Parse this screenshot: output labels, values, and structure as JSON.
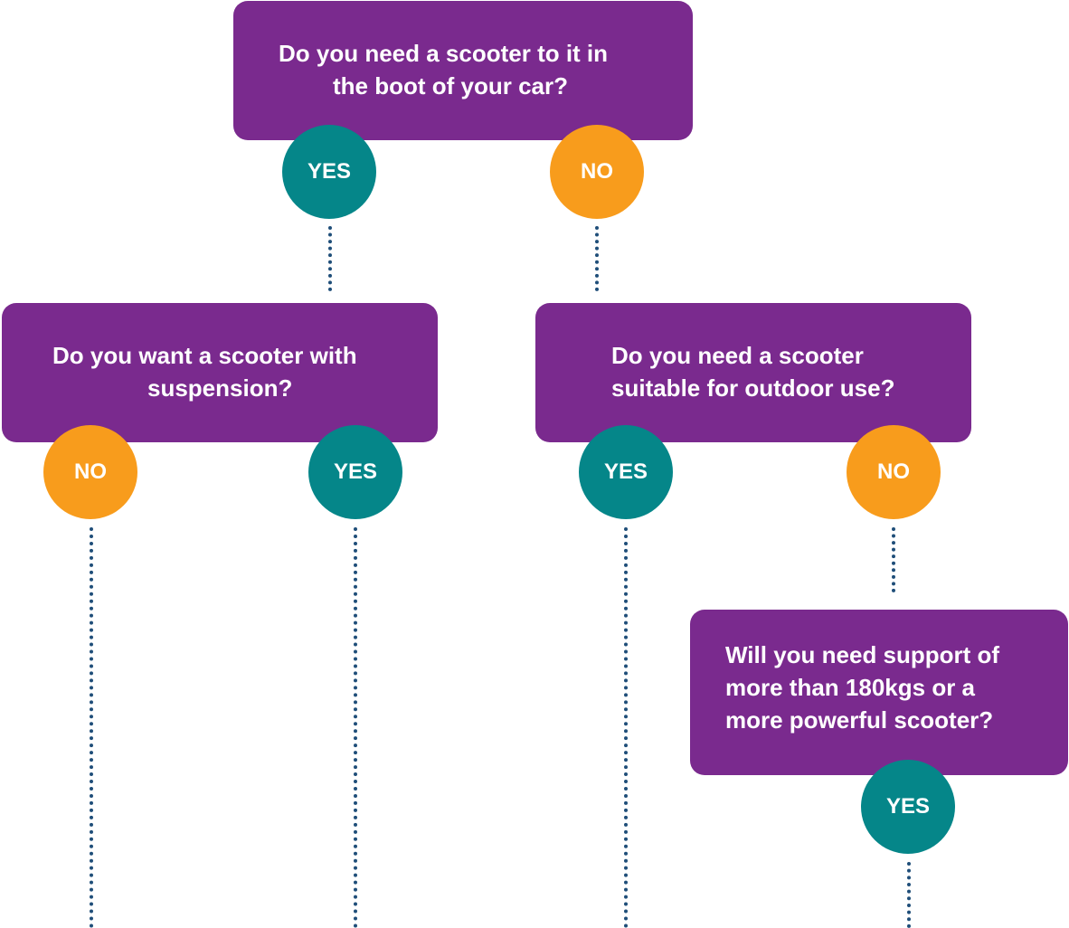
{
  "colors": {
    "question_box": "#7a2a8e",
    "yes": "#058689",
    "no": "#f89c1c",
    "connector": "#1f4e79"
  },
  "questions": {
    "q1": [
      "Do you need a scooter to it in",
      "the boot of your car?"
    ],
    "q2": [
      "Do you want a scooter with",
      "suspension?"
    ],
    "q3": [
      "Do you need a scooter",
      "suitable for outdoor use?"
    ],
    "q4": [
      "Will you need support of",
      "more than 180kgs or a",
      "more powerful scooter?"
    ]
  },
  "answers": {
    "q1_yes": "YES",
    "q1_no": "NO",
    "q2_no": "NO",
    "q2_yes": "YES",
    "q3_yes": "YES",
    "q3_no": "NO",
    "q4_yes": "YES"
  }
}
